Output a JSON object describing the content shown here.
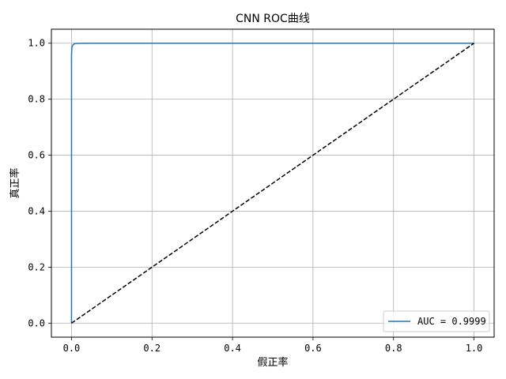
{
  "chart_data": {
    "type": "line",
    "title": "CNN ROC曲线",
    "xlabel": "假正率",
    "ylabel": "真正率",
    "xlim": [
      -0.05,
      1.05
    ],
    "ylim": [
      -0.05,
      1.05
    ],
    "xticks": [
      0.0,
      0.2,
      0.4,
      0.6,
      0.8,
      1.0
    ],
    "yticks": [
      0.0,
      0.2,
      0.4,
      0.6,
      0.8,
      1.0
    ],
    "xtick_labels": [
      "0.0",
      "0.2",
      "0.4",
      "0.6",
      "0.8",
      "1.0"
    ],
    "ytick_labels": [
      "0.0",
      "0.2",
      "0.4",
      "0.6",
      "0.8",
      "1.0"
    ],
    "grid": true,
    "legend_position": "lower-right",
    "legend": [
      "AUC = 0.9999"
    ],
    "series": [
      {
        "name": "AUC = 0.9999",
        "color": "#1f77b4",
        "style": "solid",
        "x": [
          0.0,
          0.0,
          0.001,
          0.003,
          0.006,
          0.01,
          0.02,
          0.05,
          0.1,
          0.3,
          0.5,
          1.0
        ],
        "y": [
          0.0,
          0.96,
          0.985,
          0.993,
          0.997,
          0.999,
          0.9995,
          1.0,
          1.0,
          1.0,
          1.0,
          1.0
        ]
      },
      {
        "name": "",
        "color": "#000000",
        "style": "dashed",
        "x": [
          0.0,
          1.0
        ],
        "y": [
          0.0,
          1.0
        ]
      }
    ]
  }
}
